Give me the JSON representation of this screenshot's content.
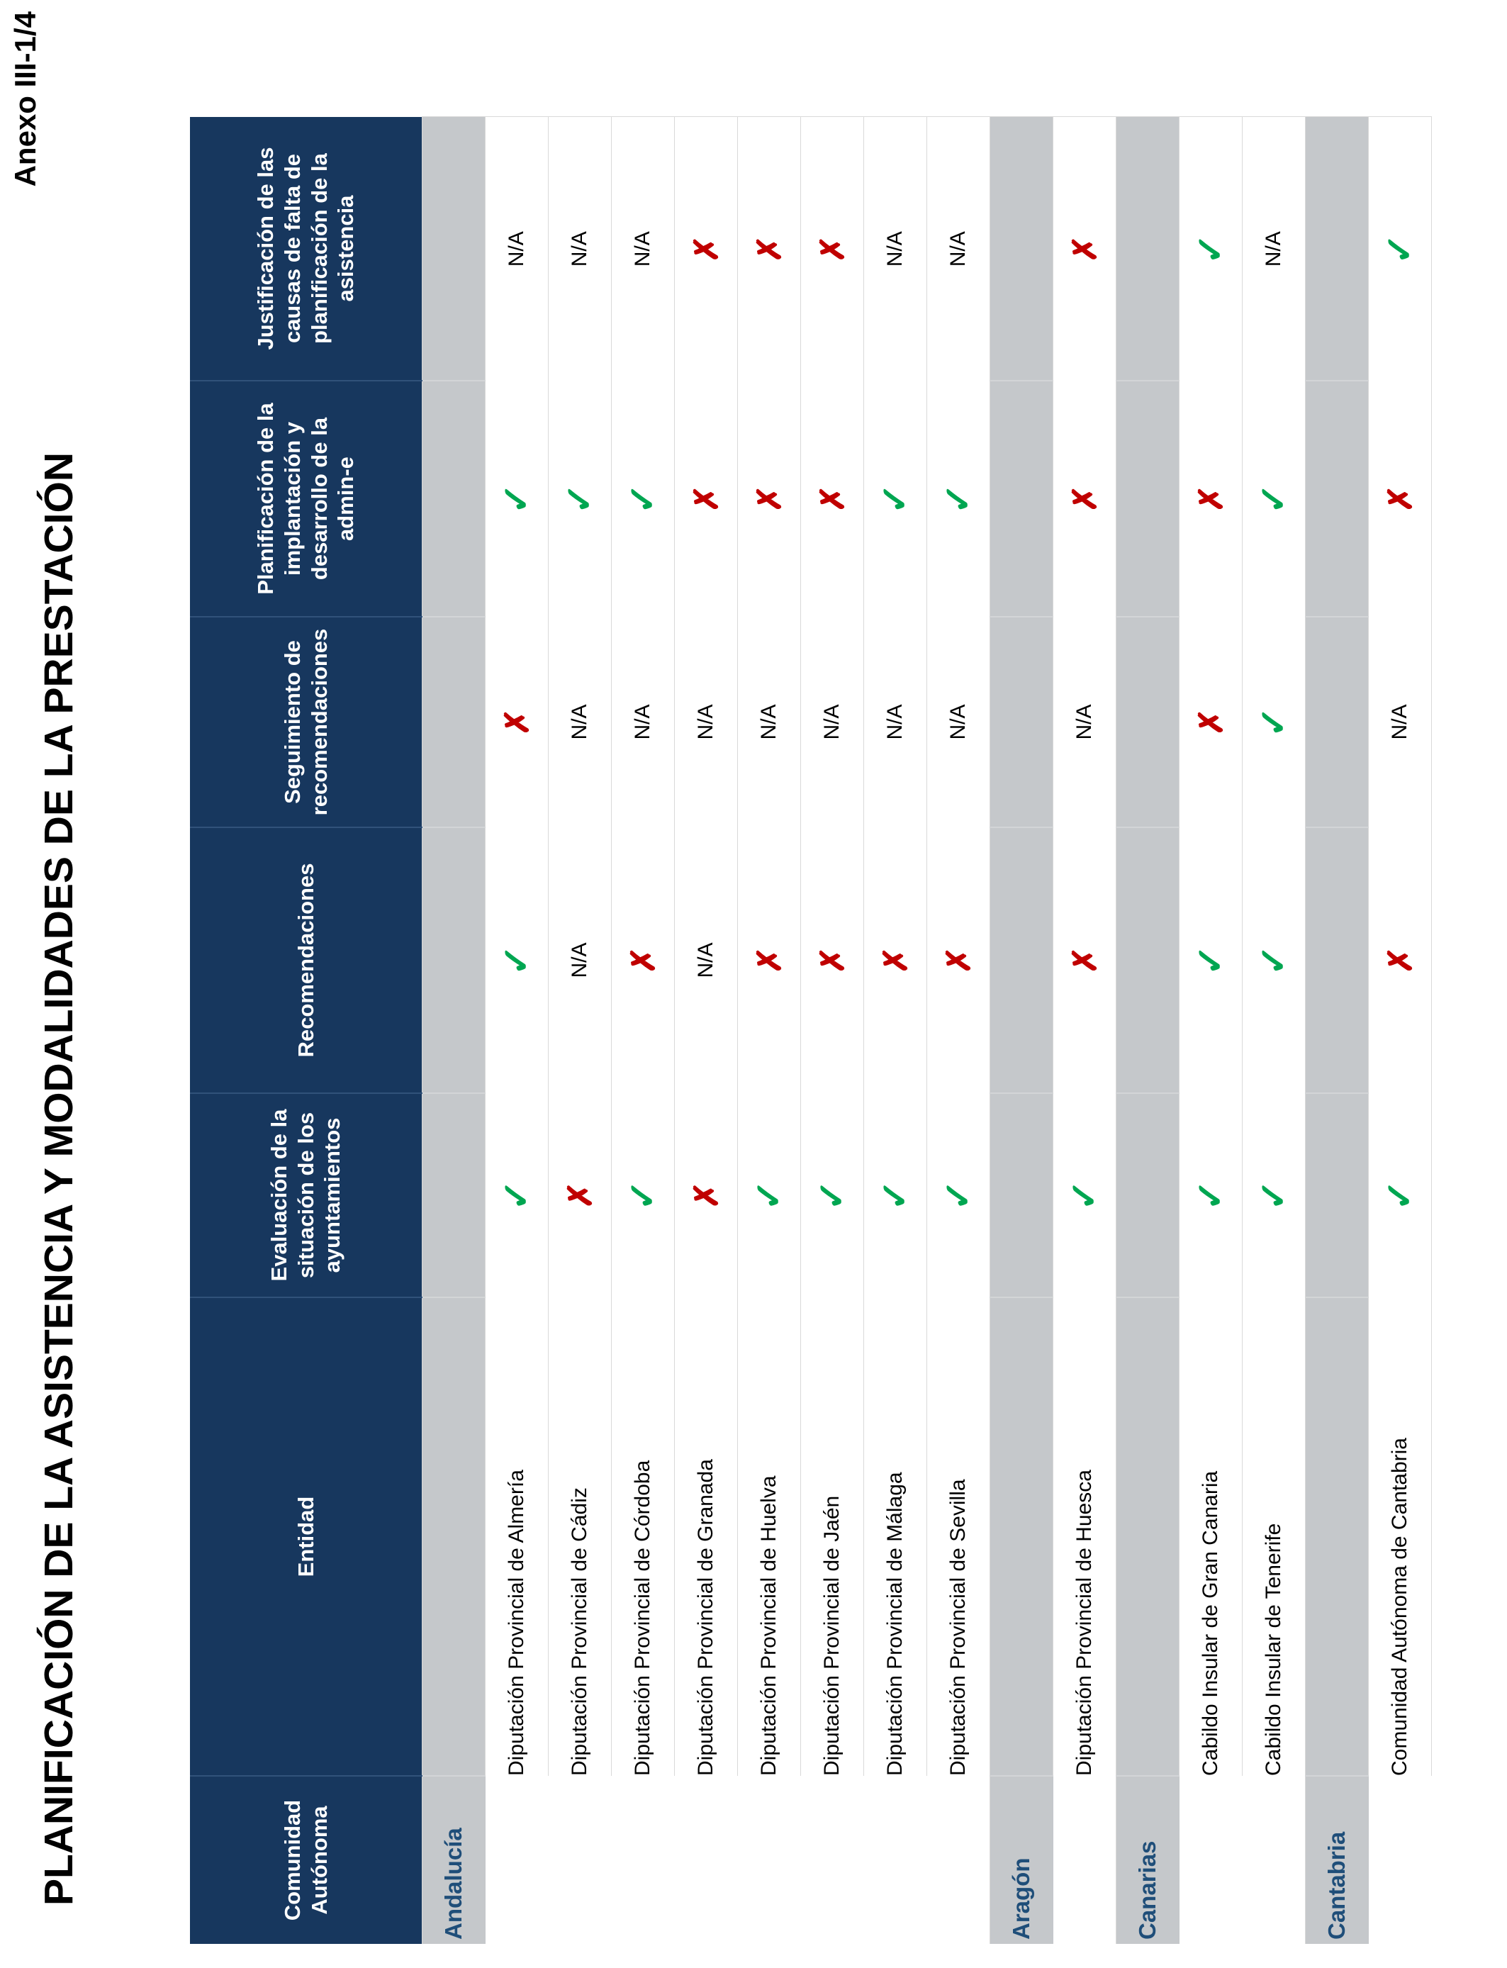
{
  "page": {
    "annex_label": "Anexo III-1/4",
    "title": "PLANIFICACIÓN DE LA ASISTENCIA Y MODALIDADES DE LA PRESTACIÓN"
  },
  "table": {
    "columns": [
      "Comunidad Autónoma",
      "Entidad",
      "Evaluación de la situación de los ayuntamientos",
      "Recomendaciones",
      "Seguimiento de recomendaciones",
      "Planificación de la implantación y desarrollo de la admin-e",
      "Justificación de las causas de falta de planificación de la asistencia"
    ],
    "legend": {
      "check": "✓",
      "cross": "✗",
      "na": "N/A"
    },
    "groups": [
      {
        "region": "Andalucía",
        "rows": [
          {
            "entidad": "Diputación Provincial de Almería",
            "marks": [
              "check",
              "check",
              "cross",
              "check",
              "na"
            ]
          },
          {
            "entidad": "Diputación Provincial de Cádiz",
            "marks": [
              "cross",
              "na",
              "na",
              "check",
              "na"
            ]
          },
          {
            "entidad": "Diputación Provincial de Córdoba",
            "marks": [
              "check",
              "cross",
              "na",
              "check",
              "na"
            ]
          },
          {
            "entidad": "Diputación Provincial de Granada",
            "marks": [
              "cross",
              "na",
              "na",
              "cross",
              "cross"
            ]
          },
          {
            "entidad": "Diputación Provincial de Huelva",
            "marks": [
              "check",
              "cross",
              "na",
              "cross",
              "cross"
            ]
          },
          {
            "entidad": "Diputación Provincial de Jaén",
            "marks": [
              "check",
              "cross",
              "na",
              "cross",
              "cross"
            ]
          },
          {
            "entidad": "Diputación Provincial de Málaga",
            "marks": [
              "check",
              "cross",
              "na",
              "check",
              "na"
            ]
          },
          {
            "entidad": "Diputación Provincial de Sevilla",
            "marks": [
              "check",
              "cross",
              "na",
              "check",
              "na"
            ]
          }
        ]
      },
      {
        "region": "Aragón",
        "rows": [
          {
            "entidad": "Diputación Provincial de Huesca",
            "marks": [
              "check",
              "cross",
              "na",
              "cross",
              "cross"
            ]
          }
        ]
      },
      {
        "region": "Canarias",
        "rows": [
          {
            "entidad": "Cabildo Insular de Gran Canaria",
            "marks": [
              "check",
              "check",
              "cross",
              "cross",
              "check"
            ]
          },
          {
            "entidad": "Cabildo Insular de Tenerife",
            "marks": [
              "check",
              "check",
              "check",
              "check",
              "na"
            ]
          }
        ]
      },
      {
        "region": "Cantabria",
        "rows": [
          {
            "entidad": "Comunidad Autónoma de Cantabria",
            "marks": [
              "check",
              "cross",
              "na",
              "cross",
              "check"
            ]
          }
        ]
      }
    ]
  },
  "colors": {
    "header_navy": "#17375E",
    "group_gray": "#C5C8CB",
    "region_label_blue": "#1F4E79",
    "check_green": "#00A651",
    "cross_red": "#C00000",
    "grid_line": "#D9D9D9"
  }
}
